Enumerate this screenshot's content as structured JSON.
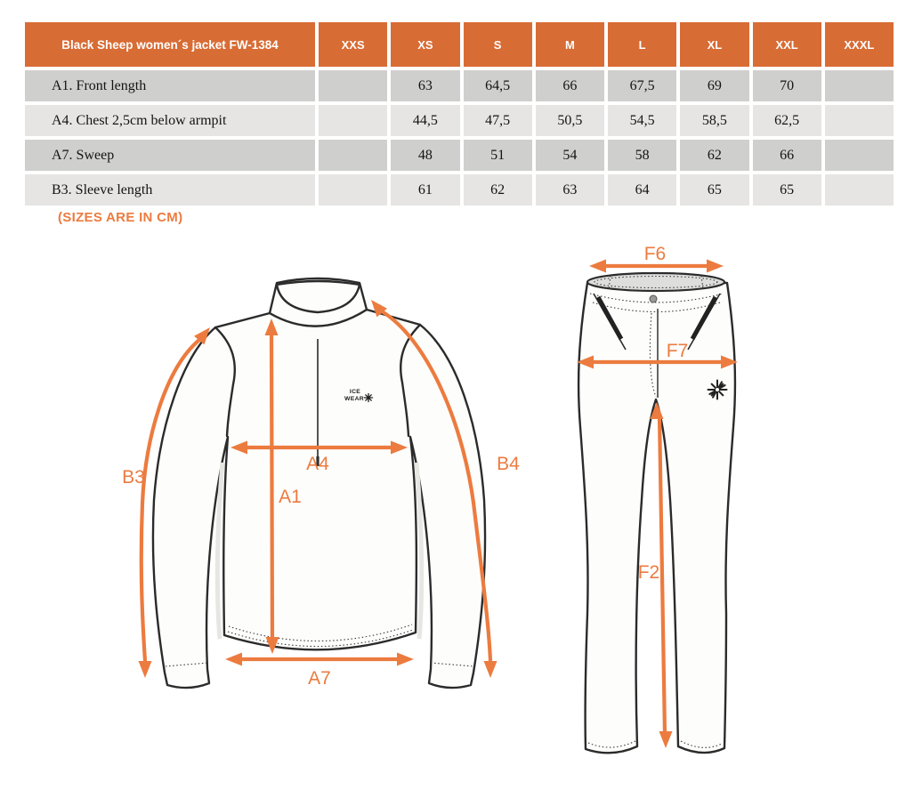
{
  "table": {
    "title": "Black Sheep women´s jacket FW-1384",
    "size_headers": [
      "XXS",
      "XS",
      "S",
      "M",
      "L",
      "XL",
      "XXL",
      "XXXL"
    ],
    "rows": [
      {
        "label": "A1. Front length",
        "values": [
          "",
          "63",
          "64,5",
          "66",
          "67,5",
          "69",
          "70",
          ""
        ]
      },
      {
        "label": "A4. Chest 2,5cm below armpit",
        "values": [
          "",
          "44,5",
          "47,5",
          "50,5",
          "54,5",
          "58,5",
          "62,5",
          ""
        ]
      },
      {
        "label": "A7. Sweep",
        "values": [
          "",
          "48",
          "51",
          "54",
          "58",
          "62",
          "66",
          ""
        ]
      },
      {
        "label": "B3. Sleeve length",
        "values": [
          "",
          "61",
          "62",
          "63",
          "64",
          "65",
          "65",
          ""
        ]
      }
    ]
  },
  "note": "(SIZES ARE IN CM)",
  "jacket": {
    "logo": {
      "line1": "ICE",
      "line2": "WEAR",
      "icon": "snowflake-icon"
    },
    "labels": {
      "b3": "B3",
      "a4": "A4",
      "a1": "A1",
      "b4": "B4",
      "a7": "A7"
    }
  },
  "pants": {
    "labels": {
      "f6": "F6",
      "f7": "F7",
      "f2": "F2"
    },
    "icon": "snowflake-icon"
  },
  "colors": {
    "header_orange": "#D86C35",
    "arrow_orange": "#EC7B3F",
    "row_dark": "#CFCFCE",
    "row_light": "#E6E5E3",
    "collar_gray": "#C9C9C7",
    "waist_gray": "#DEDEDC",
    "outline": "#2B2B2B"
  }
}
